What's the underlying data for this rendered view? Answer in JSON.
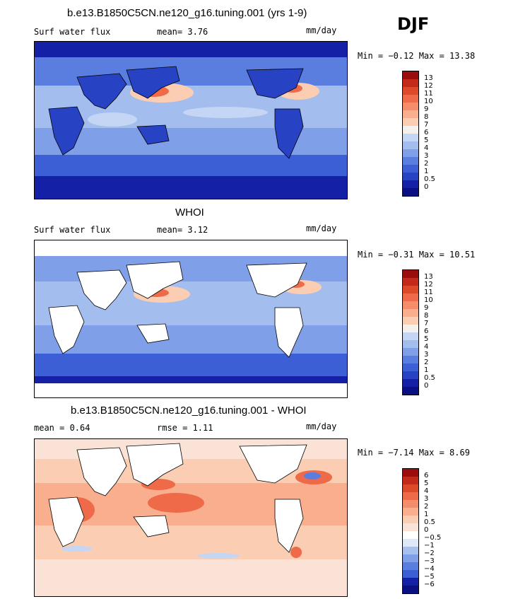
{
  "season": "DJF",
  "panels": [
    {
      "title": "b.e13.B1850C5CN.ne120_g16.tuning.001 (yrs 1-9)",
      "left_label": "Surf water flux",
      "stat1": "mean=   3.76",
      "units": "mm/day",
      "minmax": "Min =  −0.12 Max =  13.38",
      "labels": [
        "13",
        "12",
        "11",
        "10",
        "9",
        "8",
        "7",
        "6",
        "5",
        "4",
        "3",
        "2",
        "1",
        "0.5",
        "0"
      ]
    },
    {
      "title": "WHOI",
      "left_label": "Surf water flux",
      "stat1": "mean=   3.12",
      "units": "mm/day",
      "minmax": "Min =  −0.31 Max =  10.51",
      "labels": [
        "13",
        "12",
        "11",
        "10",
        "9",
        "8",
        "7",
        "6",
        "5",
        "4",
        "3",
        "2",
        "1",
        "0.5",
        "0"
      ]
    },
    {
      "title": "b.e13.B1850C5CN.ne120_g16.tuning.001 - WHOI",
      "left_label": "mean =   0.64",
      "stat1": "rmse =   1.11",
      "units": "mm/day",
      "minmax": "Min =  −7.14 Max =   8.69",
      "labels": [
        "6",
        "5",
        "4",
        "3",
        "2",
        "1",
        "0.5",
        "0",
        "−0.5",
        "−1",
        "−2",
        "−3",
        "−4",
        "−5",
        "−6"
      ]
    }
  ],
  "colors": {
    "abs_scale": [
      "#9b0d0d",
      "#c42a1a",
      "#dc4a2a",
      "#ee6a48",
      "#f58c6a",
      "#f9ae8e",
      "#fbcdb2",
      "#f4f0ec",
      "#c4d6f3",
      "#a3bdee",
      "#7f9fe8",
      "#5a7ee0",
      "#3c5fd6",
      "#2842c4",
      "#1420a6",
      "#0a0f82"
    ],
    "diff_scale": [
      "#9b0d0d",
      "#c42a1a",
      "#dc4a2a",
      "#ee6a48",
      "#f58c6a",
      "#f9ae8e",
      "#fbcdb2",
      "#fae3d6",
      "#ffffff",
      "#dfe8f8",
      "#a8c0ee",
      "#7f9fe8",
      "#5a7ee0",
      "#3c5fd6",
      "#1420a6",
      "#0a0f82"
    ],
    "land": "#ffffff",
    "coast": "#000000"
  }
}
